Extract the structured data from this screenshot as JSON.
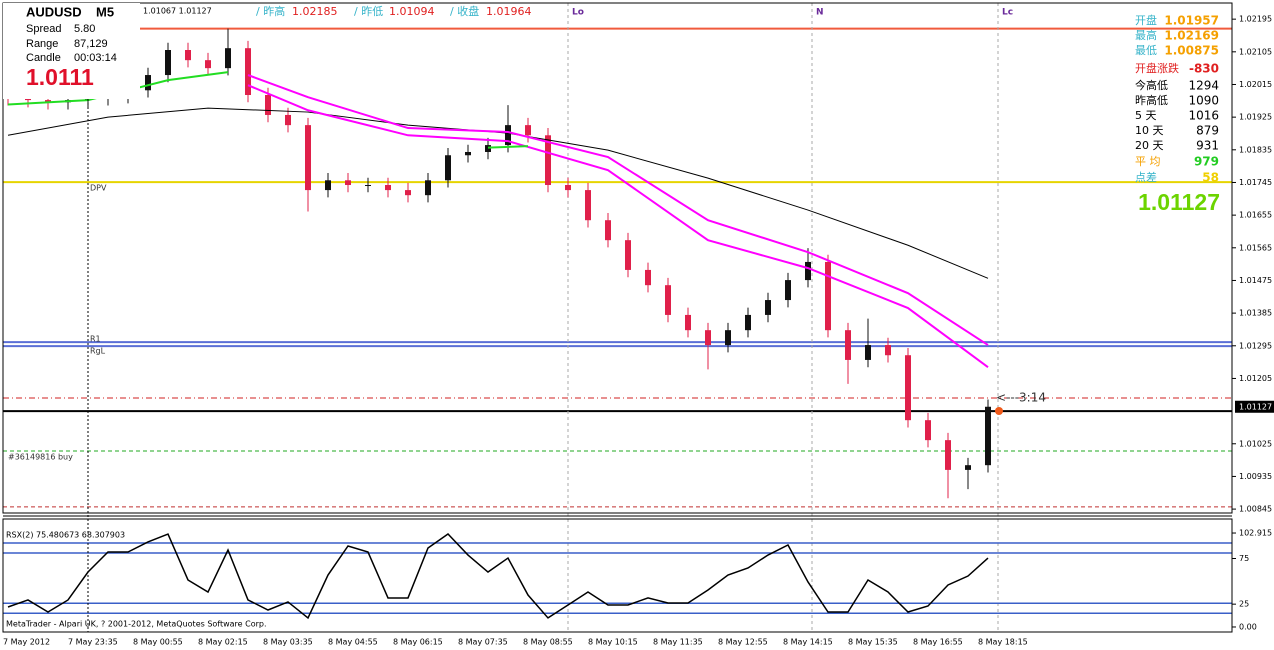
{
  "header": {
    "symbol": "AUDUSD",
    "timeframe": "M5",
    "spread_label": "Spread",
    "spread": "5.80",
    "range_label": "Range",
    "range": "87,129",
    "candle_label": "Candle",
    "candle": "00:03:14",
    "price": 1.0111,
    "ohlc_text": "1.01067 1.01127",
    "prev_high_label": "/ 昨高",
    "prev_high": 1.02185,
    "prev_low_label": "/ 昨低",
    "prev_low": 1.01094,
    "prev_close_label": "/ 收盘",
    "prev_close": 1.01964
  },
  "stats": {
    "open_label": "开盘",
    "open": 1.01957,
    "high_label": "最高",
    "high": 1.02169,
    "low_label": "最低",
    "low": 1.00875,
    "change_label": "开盘涨跌",
    "change": -830,
    "today_range_label": "今高低",
    "today_range": 1294,
    "yday_range_label": "昨高低",
    "yday_range": 1090,
    "d5_label": "5 天",
    "d5": 1016,
    "d10_label": "10 天",
    "d10": 879,
    "d20_label": "20 天",
    "d20": 931,
    "avg_label": "平 均",
    "avg": 979,
    "spread_label": "点差",
    "spread": 58,
    "price": 1.01127
  },
  "footer": "MetaTrader - Alpari UK, ? 2001-2012, MetaQuotes Software Corp.",
  "chart_data": [
    {
      "type": "candlestick",
      "x_labels": [
        "7 May 2012",
        "7 May 23:35",
        "8 May 00:55",
        "8 May 02:15",
        "8 May 03:35",
        "8 May 04:55",
        "8 May 06:15",
        "8 May 07:35",
        "8 May 08:55",
        "8 May 10:15",
        "8 May 11:35",
        "8 May 12:55",
        "8 May 14:15",
        "8 May 15:35",
        "8 May 16:55",
        "8 May 18:15"
      ],
      "open": [
        1.0198,
        1.01977,
        1.01972,
        1.01966,
        1.01972,
        1.01977,
        1.01983,
        1.01999,
        1.02041,
        1.0211,
        1.02082,
        1.0206,
        1.02115,
        1.01986,
        1.01931,
        1.01903,
        1.01724,
        1.01751,
        1.01738,
        1.01738,
        1.01724,
        1.0171,
        1.01751,
        1.0182,
        1.01829,
        1.01848,
        1.01903,
        1.01875,
        1.01738,
        1.01724,
        1.01641,
        1.01586,
        1.01504,
        1.01462,
        1.0138,
        1.01338,
        1.01297,
        1.01338,
        1.0138,
        1.01421,
        1.01476,
        1.01526,
        1.01338,
        1.01256,
        1.01297,
        1.01269,
        1.0109,
        1.01035,
        1.00953,
        1.00966
      ],
      "high": [
        1.02,
        1.01997,
        1.01992,
        1.01992,
        1.01997,
        1.02003,
        1.02019,
        1.02061,
        1.0213,
        1.0213,
        1.02102,
        1.02169,
        1.02135,
        1.02006,
        1.01951,
        1.01923,
        1.01771,
        1.01771,
        1.01758,
        1.01758,
        1.01744,
        1.01771,
        1.0184,
        1.01849,
        1.01868,
        1.01958,
        1.01923,
        1.01895,
        1.01758,
        1.01744,
        1.01661,
        1.01606,
        1.01524,
        1.01482,
        1.014,
        1.01358,
        1.01358,
        1.014,
        1.01441,
        1.01496,
        1.01564,
        1.01546,
        1.01358,
        1.0137,
        1.01317,
        1.01289,
        1.0111,
        1.01055,
        1.00986,
        1.01147
      ],
      "low": [
        1.01957,
        1.01952,
        1.01946,
        1.01946,
        1.01952,
        1.01957,
        1.01963,
        1.01979,
        1.02021,
        1.02062,
        1.0204,
        1.0204,
        1.01966,
        1.01911,
        1.01883,
        1.01665,
        1.01704,
        1.01718,
        1.01718,
        1.01704,
        1.0169,
        1.0169,
        1.01731,
        1.018,
        1.01809,
        1.01828,
        1.01855,
        1.01718,
        1.01704,
        1.01621,
        1.01566,
        1.01484,
        1.01442,
        1.0136,
        1.01318,
        1.0123,
        1.01277,
        1.01318,
        1.0136,
        1.01401,
        1.01456,
        1.01318,
        1.0119,
        1.01236,
        1.01249,
        1.0107,
        1.01015,
        1.00875,
        1.009,
        1.00946
      ],
      "close": [
        1.01977,
        1.01972,
        1.01966,
        1.01972,
        1.01977,
        1.01983,
        1.01999,
        1.02041,
        1.0211,
        1.02082,
        1.0206,
        1.02115,
        1.01986,
        1.01931,
        1.01903,
        1.01724,
        1.01751,
        1.01738,
        1.01738,
        1.01724,
        1.0171,
        1.01751,
        1.0182,
        1.01829,
        1.01848,
        1.01903,
        1.01875,
        1.01738,
        1.01724,
        1.01641,
        1.01586,
        1.01504,
        1.01462,
        1.0138,
        1.01338,
        1.01297,
        1.01338,
        1.0138,
        1.01421,
        1.01476,
        1.01526,
        1.01338,
        1.01256,
        1.01297,
        1.01269,
        1.0109,
        1.01035,
        1.00953,
        1.00966,
        1.01127
      ],
      "up_color": "#111111",
      "down_color": "#e0204a",
      "ylim": [
        1.00837,
        1.02234
      ],
      "yticks": [
        1.02195,
        1.02105,
        1.02015,
        1.01925,
        1.01835,
        1.01745,
        1.01655,
        1.01565,
        1.01475,
        1.01385,
        1.01295,
        1.01205,
        1.01025,
        1.00935,
        1.00845
      ],
      "current_price": 1.01127,
      "overlays": [
        {
          "color": "#000000",
          "x": [
            0,
            5,
            10,
            15,
            20,
            25,
            30,
            35,
            40,
            45,
            49
          ],
          "values": [
            1.01875,
            1.01925,
            1.0195,
            1.01939,
            1.01903,
            1.01881,
            1.01834,
            1.01757,
            1.01669,
            1.01572,
            1.01481
          ]
        },
        {
          "color": "#ff00ff",
          "x": [
            12,
            15,
            20,
            25,
            30,
            35,
            40,
            45,
            49
          ],
          "values": [
            1.02041,
            1.0198,
            1.01895,
            1.01884,
            1.01815,
            1.01641,
            1.01553,
            1.0144,
            1.01297
          ]
        },
        {
          "color": "#ff00ff",
          "x": [
            12,
            15,
            20,
            25,
            30,
            35,
            40,
            45,
            49
          ],
          "values": [
            1.02013,
            1.01944,
            1.01875,
            1.01859,
            1.01779,
            1.01586,
            1.01509,
            1.01399,
            1.01236
          ]
        },
        {
          "color": "#22dd22",
          "x": [
            0,
            4,
            6,
            8,
            11,
            12,
            24,
            26
          ],
          "values": [
            1.0196,
            1.01972,
            1.01999,
            1.02027,
            1.02049,
            null,
            1.01841,
            1.01845
          ]
        }
      ],
      "levels": [
        {
          "value": 1.02169,
          "color": "#f05a3c",
          "style": "solid"
        },
        {
          "value": 1.01746,
          "color": "#e6d400",
          "style": "solid",
          "label": "DPV"
        },
        {
          "value": 1.01305,
          "color": "#5b6fd6",
          "style": "solid",
          "label": "R1"
        },
        {
          "value": 1.01294,
          "color": "#5b6fd6",
          "style": "solid",
          "label": "RgL"
        },
        {
          "value": 1.01151,
          "color": "#d02020",
          "style": "dashdot"
        },
        {
          "value": 1.01115,
          "color": "#000000",
          "style": "solid"
        },
        {
          "value": 1.01005,
          "color": "#22aa22",
          "style": "dashed",
          "label": "#36149816 buy"
        },
        {
          "value": 1.00851,
          "color": "#c03030",
          "style": "dashed"
        }
      ],
      "countdown": "<---3:14",
      "time_markers": [
        "Lo",
        "N",
        "Lc"
      ]
    },
    {
      "type": "line",
      "title": "RSX(2) 75.480673 68.307903",
      "color": "#000000",
      "x": [
        0,
        1,
        2,
        3,
        4,
        5,
        6,
        7,
        8,
        9,
        10,
        11,
        12,
        13,
        14,
        15,
        16,
        17,
        18,
        19,
        20,
        21,
        22,
        23,
        24,
        25,
        26,
        27,
        28,
        29,
        30,
        31,
        32,
        33,
        34,
        35,
        36,
        37,
        38,
        39,
        40,
        41,
        42,
        43,
        44,
        45,
        46,
        47,
        48,
        49
      ],
      "values": [
        21.9,
        29.6,
        16.4,
        29.6,
        60.2,
        82.1,
        82.1,
        93.1,
        101.8,
        51.5,
        38.3,
        84.3,
        29.6,
        18.6,
        27.4,
        9.9,
        56.9,
        88.7,
        82.1,
        31.8,
        31.8,
        86.5,
        101.8,
        78.8,
        60.2,
        75.5,
        35.0,
        9.9,
        24.1,
        38.3,
        24.1,
        24.1,
        31.8,
        26.3,
        26.3,
        40.5,
        56.9,
        64.6,
        78.8,
        89.8,
        49.3,
        16.4,
        16.4,
        51.5,
        38.3,
        16.4,
        23.0,
        46.0,
        55.8,
        75.480673
      ],
      "ylim": [
        -5.5,
        112.8
      ],
      "yticks": [
        102.915,
        75,
        25,
        {
          "value": 0,
          "label": "0.00"
        }
      ],
      "levels": [
        92,
        81,
        26,
        15
      ],
      "level_color": "#3a5fc8"
    }
  ]
}
